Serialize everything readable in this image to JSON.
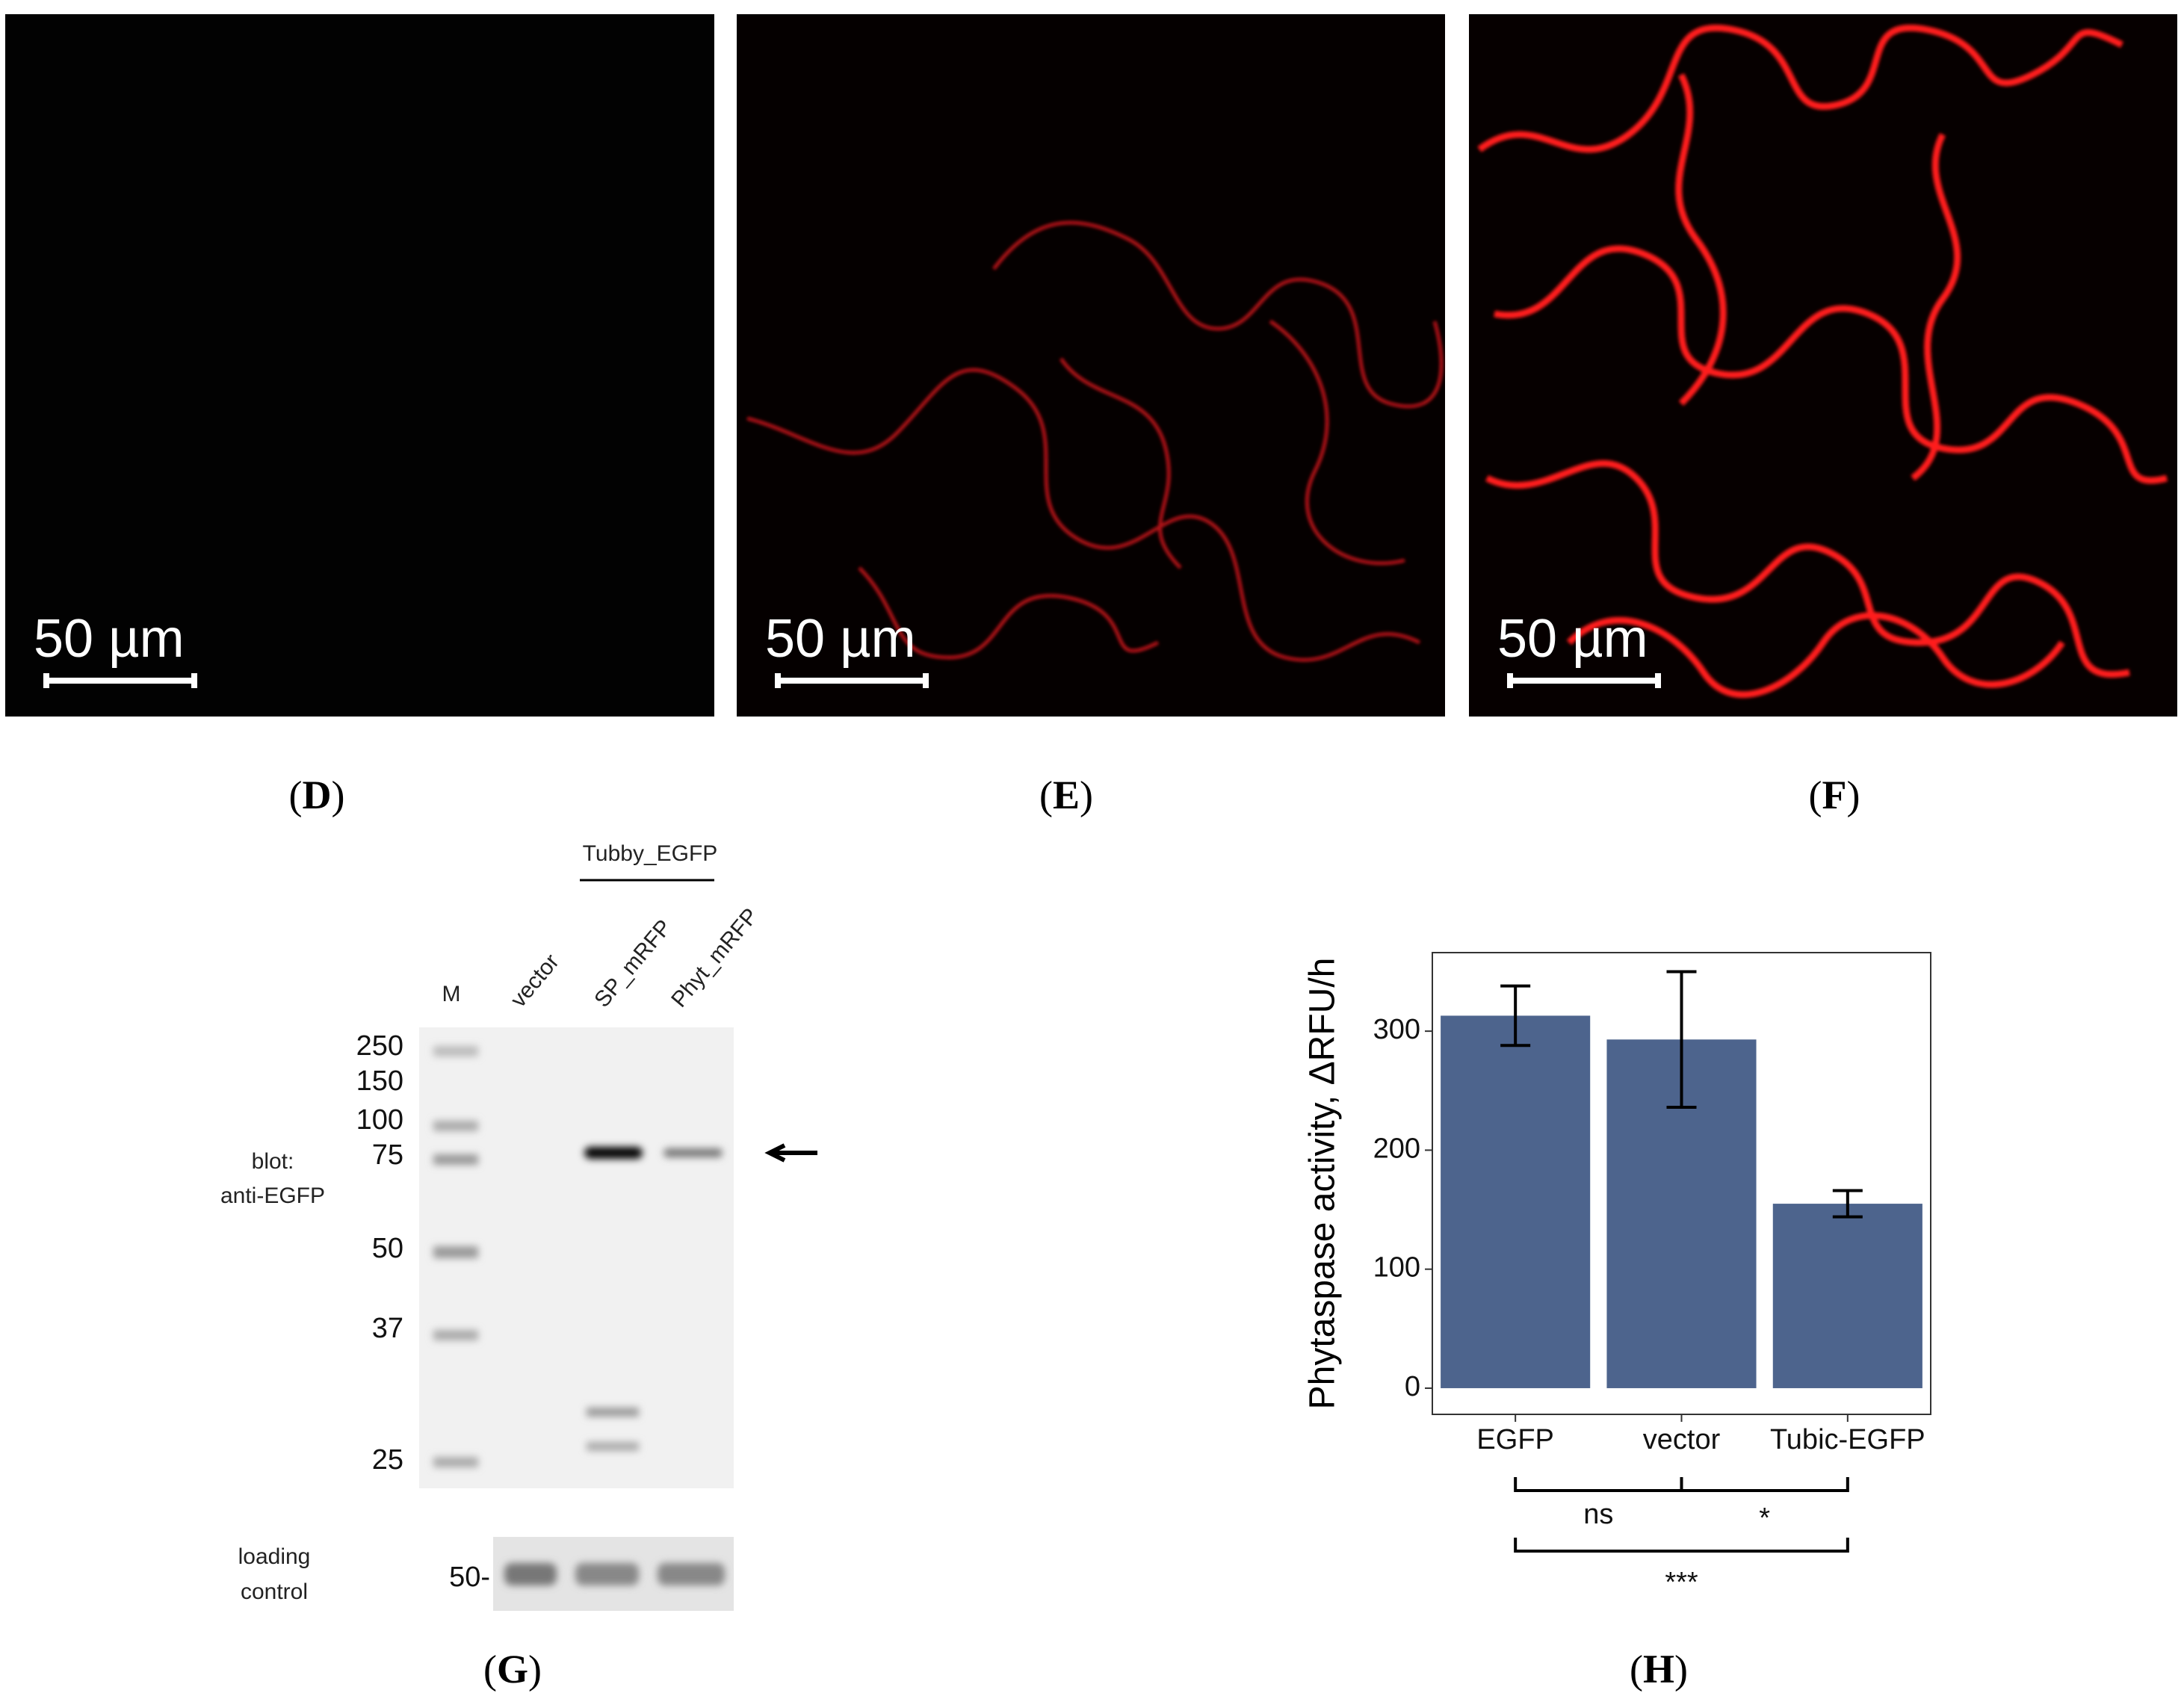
{
  "panels": {
    "microscopy": [
      {
        "label": "D",
        "scale_bar": "50 µm"
      },
      {
        "label": "E",
        "scale_bar": "50 µm"
      },
      {
        "label": "F",
        "scale_bar": "50 µm"
      }
    ],
    "blot": {
      "label": "G",
      "group": "Tubby_EGFP",
      "lanes": [
        "M",
        "vector",
        "SP_mRFP",
        "Phyt_mRFP"
      ],
      "markers": [
        "250",
        "150",
        "100",
        "75",
        "50",
        "37",
        "25"
      ],
      "blot_text": [
        "blot:",
        "anti-EGFP"
      ],
      "loading_text": [
        "loading",
        "control"
      ],
      "loading_marker": "50-"
    },
    "chart_label": "H"
  },
  "chart_data": {
    "type": "bar",
    "ylabel": "Phytaspase activity, ΔRFU/h",
    "categories": [
      "EGFP",
      "vector",
      "Tubic-EGFP"
    ],
    "values": [
      313,
      293,
      155
    ],
    "errors": [
      25,
      57,
      11
    ],
    "color": "#4d648d",
    "ylim": [
      -22,
      366
    ],
    "yticks": [
      0,
      100,
      200,
      300
    ],
    "significance": [
      "ns",
      "*",
      "***"
    ]
  }
}
